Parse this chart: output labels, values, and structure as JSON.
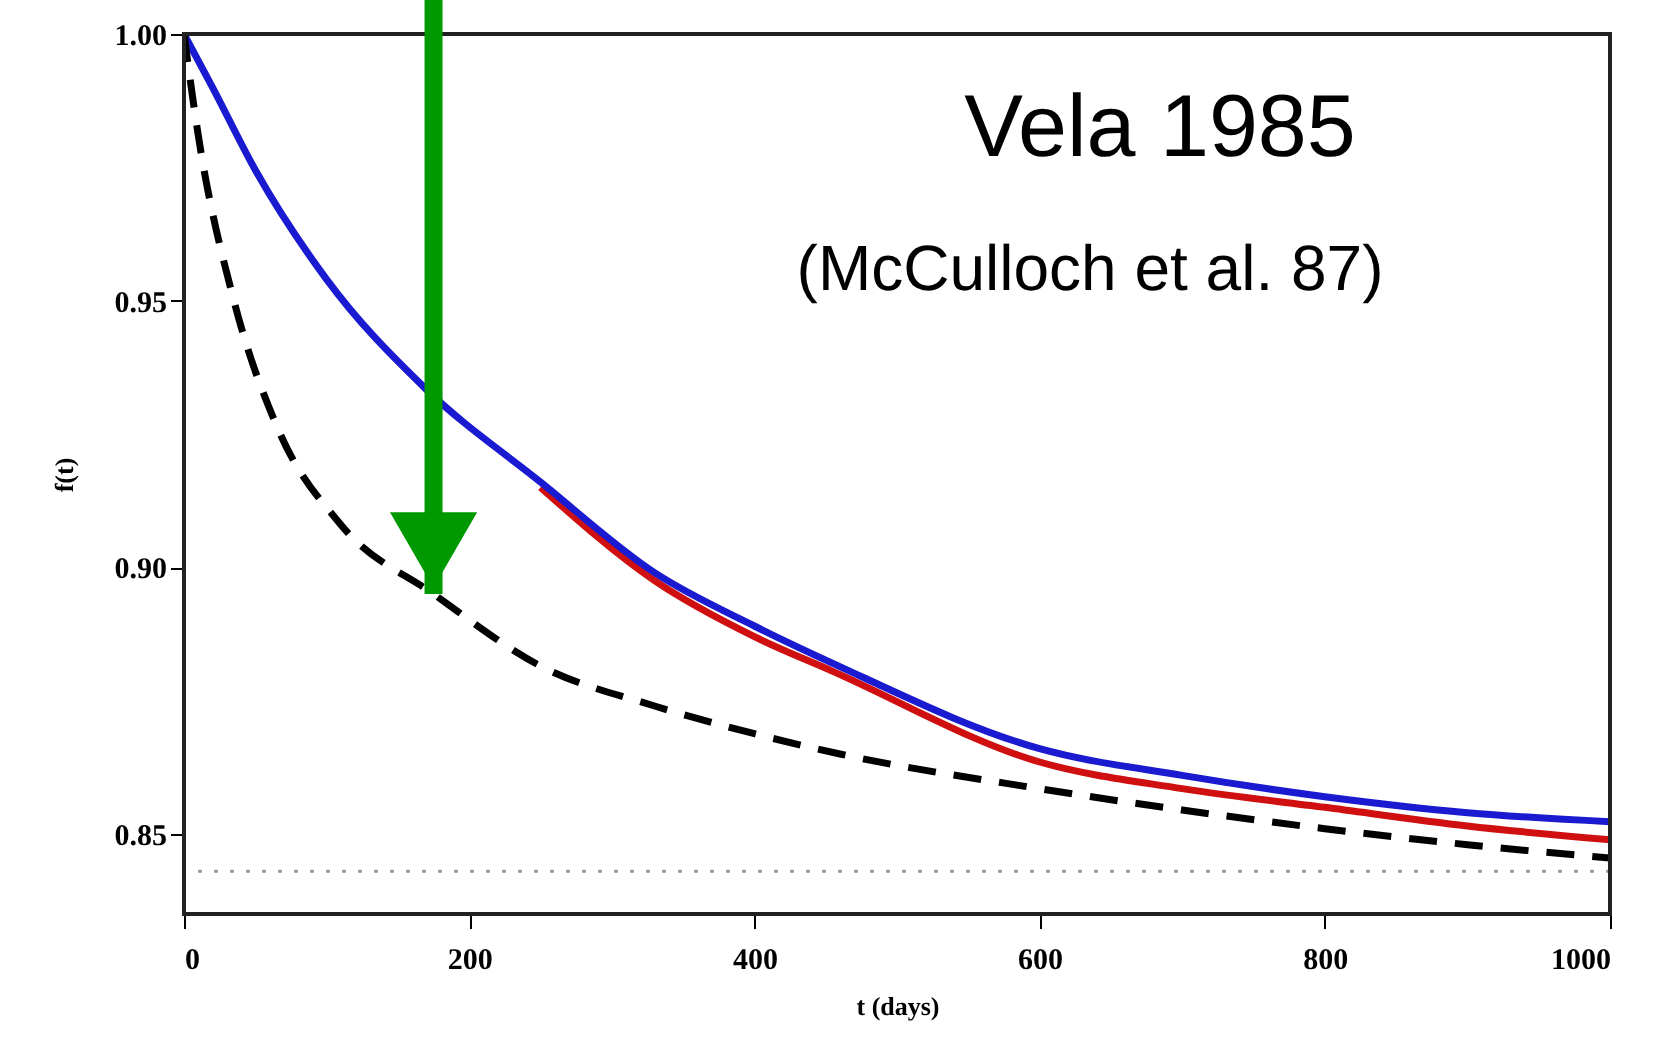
{
  "chart_data": {
    "type": "line",
    "xlabel": "t (days)",
    "ylabel": "f(t)",
    "x": [
      0,
      20,
      50,
      100,
      169,
      250,
      330,
      400,
      455,
      600,
      700,
      800,
      900,
      1000
    ],
    "series": [
      {
        "color": "#d01010",
        "values": [
          null,
          null,
          null,
          null,
          null,
          0.915,
          0.8975,
          0.887,
          0.8805,
          0.8635,
          0.8585,
          0.855,
          0.8515,
          0.8489
        ]
      },
      {
        "color": "#1a1ad0",
        "values": [
          1.0,
          0.99,
          0.9745,
          0.954,
          0.9336,
          0.916,
          0.899,
          0.889,
          0.882,
          0.866,
          0.861,
          0.857,
          0.854,
          0.8523
        ]
      },
      {
        "color": "#000000",
        "line_style": "dashed",
        "x": [
          0,
          10,
          35,
          65,
          110,
          175,
          250,
          330,
          400,
          460,
          600,
          700,
          800,
          900,
          1000
        ],
        "values": [
          1.0,
          0.981,
          0.95,
          0.9265,
          0.908,
          0.895,
          0.8815,
          0.874,
          0.8688,
          0.865,
          0.8585,
          0.8545,
          0.851,
          0.848,
          0.8455
        ]
      }
    ],
    "xlim": [
      0,
      1000
    ],
    "xticks": [
      0,
      200,
      400,
      600,
      800,
      1000
    ],
    "ylim": [
      0.835,
      1.0
    ],
    "yticks": [
      {
        "value": 0.85,
        "label": "0.85"
      },
      {
        "value": 0.9,
        "label": "0.90"
      },
      {
        "value": 0.95,
        "label": "0.95"
      },
      {
        "value": 1.0,
        "label": "1.00"
      }
    ],
    "ref_lines": [
      {
        "axis": "y",
        "value": 0.843,
        "color": "#999999",
        "line_style": "dotted"
      }
    ],
    "annotations": [
      "Vela 1985",
      "(McCulloch et al. 87)"
    ],
    "grid": false,
    "marker": "none"
  }
}
